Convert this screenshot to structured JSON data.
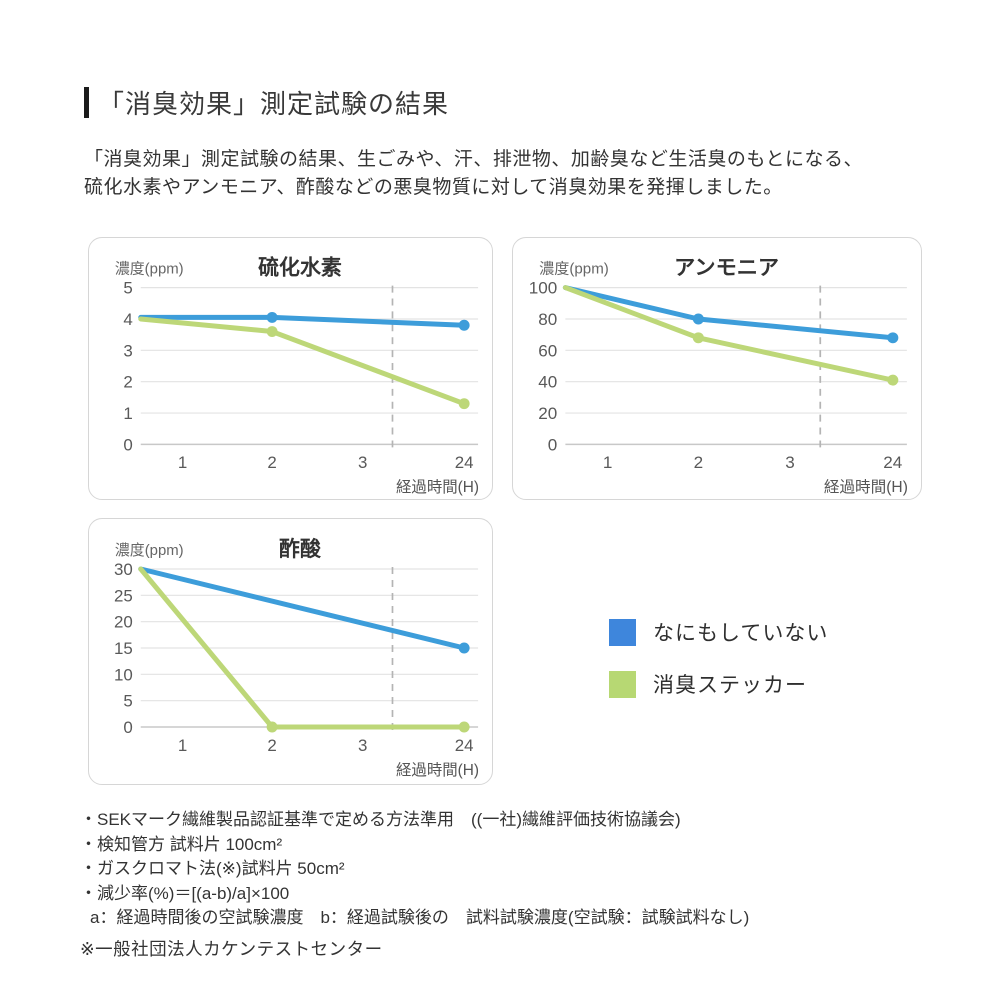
{
  "page": {
    "title": "「消臭効果」測定試験の結果",
    "intro_lines": [
      "「消臭効果」測定試験の結果、生ごみや、汗、排泄物、加齢臭など生活臭のもとになる、",
      "硫化水素やアンモニア、酢酸などの悪臭物質に対して消臭効果を発揮しました。"
    ]
  },
  "colors": {
    "series_blue": "#3d9dda",
    "series_green": "#bdd778",
    "legend_blue": "#3e86dc",
    "legend_green": "#b7d873",
    "gridline": "#e3e3e3",
    "zero_line": "#c8c8c8",
    "dashed_guide": "#b4b4b4"
  },
  "legend": {
    "items": [
      {
        "label": "なにもしていない",
        "color": "#3e86dc"
      },
      {
        "label": "消臭ステッカー",
        "color": "#b7d873"
      }
    ]
  },
  "chart_data": [
    {
      "type": "line",
      "title": "硫化水素",
      "ylabel": "濃度(ppm)",
      "xlabel": "経過時間(H)",
      "ylim": [
        0,
        5
      ],
      "yticks": [
        0,
        1,
        2,
        3,
        4,
        5
      ],
      "x_categories": [
        "1",
        "2",
        "3",
        "24"
      ],
      "dashed_guide": "between 3 and 24",
      "series": [
        {
          "name": "なにもしていない",
          "color": "#3d9dda",
          "points": [
            {
              "x": "edge",
              "y": 4.05
            },
            {
              "x": "2",
              "y": 4.05,
              "dot": true
            },
            {
              "x": "24",
              "y": 3.8,
              "dot": true
            }
          ]
        },
        {
          "name": "消臭ステッカー",
          "color": "#bdd778",
          "points": [
            {
              "x": "edge",
              "y": 4.0
            },
            {
              "x": "2",
              "y": 3.6,
              "dot": true
            },
            {
              "x": "24",
              "y": 1.3,
              "dot": true
            }
          ]
        }
      ]
    },
    {
      "type": "line",
      "title": "アンモニア",
      "ylabel": "濃度(ppm)",
      "xlabel": "経過時間(H)",
      "ylim": [
        0,
        100
      ],
      "yticks": [
        0,
        20,
        40,
        60,
        80,
        100
      ],
      "x_categories": [
        "1",
        "2",
        "3",
        "24"
      ],
      "dashed_guide": "between 3 and 24",
      "series": [
        {
          "name": "なにもしていない",
          "color": "#3d9dda",
          "points": [
            {
              "x": "edge",
              "y": 100
            },
            {
              "x": "2",
              "y": 80,
              "dot": true
            },
            {
              "x": "24",
              "y": 68,
              "dot": true
            }
          ]
        },
        {
          "name": "消臭ステッカー",
          "color": "#bdd778",
          "points": [
            {
              "x": "edge",
              "y": 100
            },
            {
              "x": "2",
              "y": 68,
              "dot": true
            },
            {
              "x": "24",
              "y": 41,
              "dot": true
            }
          ]
        }
      ]
    },
    {
      "type": "line",
      "title": "酢酸",
      "ylabel": "濃度(ppm)",
      "xlabel": "経過時間(H)",
      "ylim": [
        0,
        30
      ],
      "yticks": [
        0,
        5,
        10,
        15,
        20,
        25,
        30
      ],
      "x_categories": [
        "1",
        "2",
        "3",
        "24"
      ],
      "dashed_guide": "between 3 and 24",
      "series": [
        {
          "name": "なにもしていない",
          "color": "#3d9dda",
          "points": [
            {
              "x": "edge",
              "y": 30
            },
            {
              "x": "24",
              "y": 15,
              "dot": true
            }
          ]
        },
        {
          "name": "消臭ステッカー",
          "color": "#bdd778",
          "points": [
            {
              "x": "edge",
              "y": 30
            },
            {
              "x": "2",
              "y": 0,
              "dot": true
            },
            {
              "x": "24",
              "y": 0,
              "dot": true
            }
          ]
        }
      ]
    }
  ],
  "footnotes": {
    "lines": [
      "・SEKマーク繊維製品認証基準で定める方法準用　((一社)繊維評価技術協議会)",
      "・検知管方 試料片 100cm²",
      "・ガスクロマト法(※)試料片 50cm²",
      "・減少率(%)＝[(a-b)/a]×100",
      "a：経過時間後の空試験濃度　b：経過試験後の　試料試験濃度(空試験：試験試料なし)"
    ],
    "source": "※一般社団法人カケンテストセンター"
  }
}
